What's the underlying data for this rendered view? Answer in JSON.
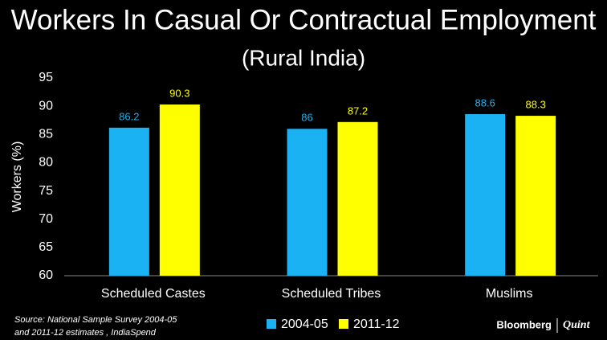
{
  "chart_data": {
    "type": "bar",
    "title": "Workers In Casual Or Contractual Employment",
    "subtitle": "(Rural India)",
    "y_label": "Workers (%)",
    "categories": [
      "Scheduled Castes",
      "Scheduled Tribes",
      "Muslims"
    ],
    "series": [
      {
        "name": "2004-05",
        "color": "#1ab2f2",
        "values": [
          86.2,
          86,
          88.6
        ]
      },
      {
        "name": "2011-12",
        "color": "#ffff00",
        "values": [
          90.3,
          87.2,
          88.3
        ]
      }
    ],
    "ylim": [
      60,
      95
    ],
    "yticks": [
      60,
      65,
      70,
      75,
      80,
      85,
      90,
      95
    ],
    "grid": false,
    "legend": "bottom"
  },
  "source": [
    "Source: National Sample Survey 2004-05",
    "and 2011-12 estimates , IndiaSpend"
  ],
  "logo": {
    "brand": "Bloomberg",
    "partner": "Quint"
  }
}
